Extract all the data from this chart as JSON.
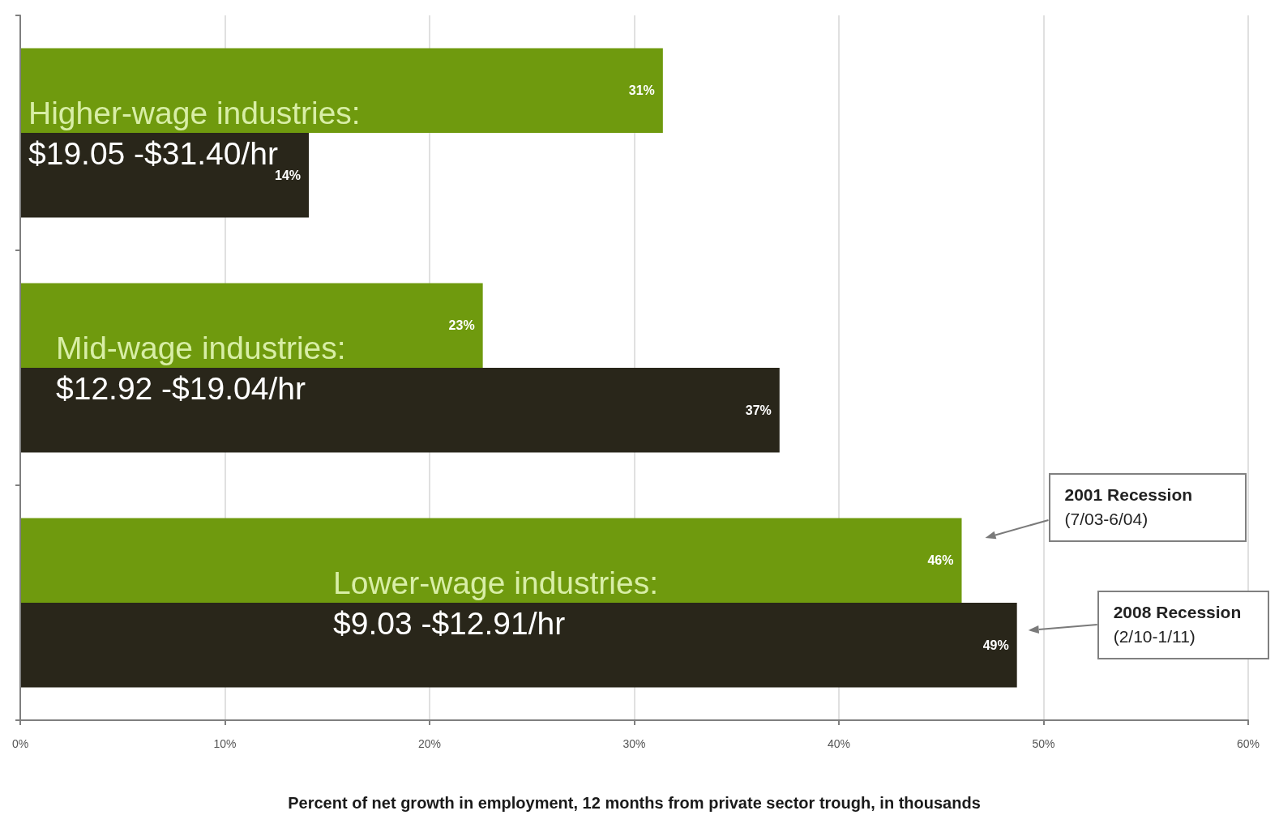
{
  "chart_data": {
    "type": "bar",
    "orientation": "horizontal",
    "categories": [
      "Higher-wage industries:\n$19.05 -$31.40/hr",
      "Mid-wage industries:\n$12.92 -$19.04/hr",
      "Lower-wage industries:\n$9.03 -$12.91/hr"
    ],
    "series": [
      {
        "name": "2001 Recession\n(7/03-6/04)",
        "color": "#6f9a0e",
        "values": [
          31.4,
          22.6,
          46.0
        ],
        "value_labels": [
          "31%",
          "23%",
          "46%"
        ]
      },
      {
        "name": "2008 Recession\n(2/10-1/11)",
        "color": "#29261a",
        "values": [
          14.1,
          37.1,
          48.7
        ],
        "value_labels": [
          "14%",
          "37%",
          "49%"
        ]
      }
    ],
    "xlabel": "Percent of net growth in employment, 12 months from private sector trough, in thousands",
    "xlim": [
      0,
      60
    ],
    "xticks": [
      {
        "value": 0,
        "label": "0%"
      },
      {
        "value": 10,
        "label": "10%"
      },
      {
        "value": 20,
        "label": "20%"
      },
      {
        "value": 30,
        "label": "30%"
      },
      {
        "value": 40,
        "label": "40%"
      },
      {
        "value": 50,
        "label": "50%"
      },
      {
        "value": 60,
        "label": "60%"
      }
    ],
    "grid": "x"
  }
}
